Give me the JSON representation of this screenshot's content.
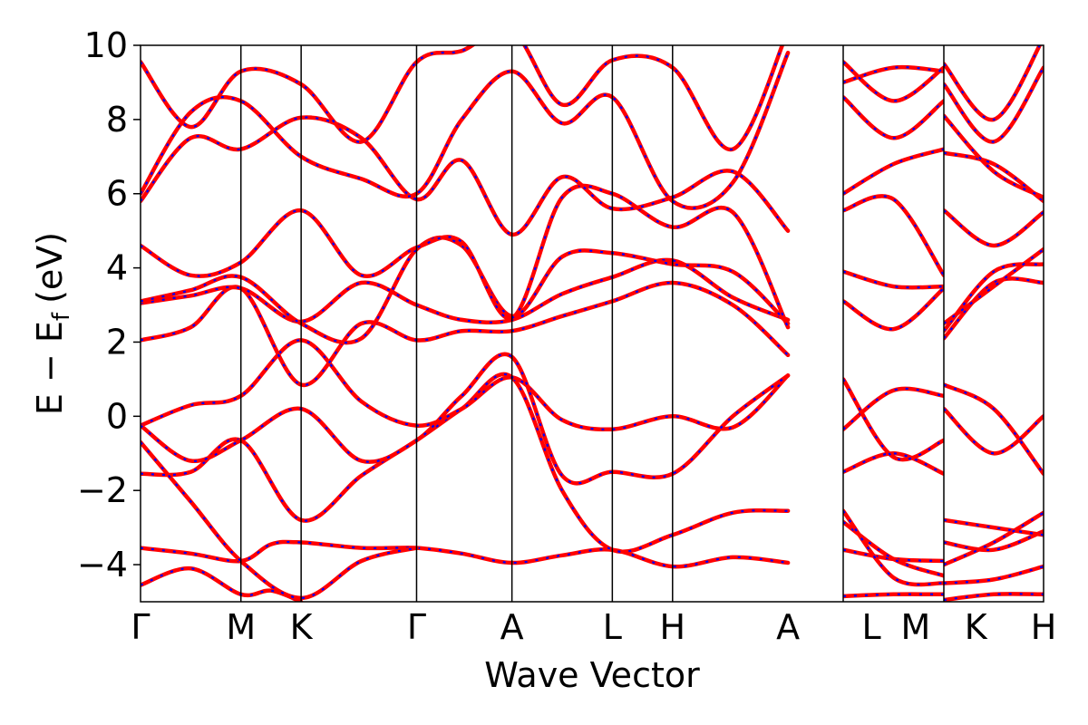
{
  "chart_data": {
    "type": "line",
    "title": "",
    "xlabel": "Wave Vector",
    "ylabel_main": "E − E",
    "ylabel_sub": "f",
    "ylabel_unit": "(eV)",
    "ylim": [
      -5,
      10
    ],
    "yticks": [
      -4,
      -2,
      0,
      2,
      4,
      6,
      8,
      10
    ],
    "ytick_labels": [
      "−4",
      "−2",
      "0",
      "2",
      "4",
      "6",
      "8",
      "10"
    ],
    "grid": false,
    "legend": "none",
    "colors": {
      "line": "#ff0000",
      "dash": "#0000ff",
      "axis": "#000000"
    },
    "segments": [
      {
        "name": "seg1",
        "x_range": [
          0,
          7
        ],
        "tick_labels": [
          {
            "x": 0,
            "label": "Γ"
          },
          {
            "x": 1,
            "label": "M"
          },
          {
            "x": 1.6,
            "label": "K"
          },
          {
            "x": 2.75,
            "label": "Γ"
          },
          {
            "x": 3.7,
            "label": "A"
          },
          {
            "x": 4.7,
            "label": "L"
          },
          {
            "x": 5.3,
            "label": "H"
          },
          {
            "x": 6.45,
            "label": "A"
          }
        ],
        "vlines": [
          1,
          1.6,
          2.75,
          3.7,
          4.7,
          5.3
        ],
        "bands": [
          [
            [
              0,
              -4.55
            ],
            [
              0.5,
              -4.1
            ],
            [
              1,
              -4.8
            ],
            [
              1.3,
              -4.7
            ],
            [
              1.6,
              -5.0
            ]
          ],
          [
            [
              0,
              -3.55
            ],
            [
              0.5,
              -3.7
            ],
            [
              1,
              -3.9
            ],
            [
              1.3,
              -3.45
            ],
            [
              1.6,
              -3.4
            ],
            [
              2.2,
              -3.55
            ],
            [
              2.75,
              -3.55
            ],
            [
              3.2,
              -3.7
            ],
            [
              3.7,
              -3.95
            ],
            [
              4.2,
              -3.75
            ],
            [
              4.7,
              -3.6
            ],
            [
              5.3,
              -4.05
            ],
            [
              5.9,
              -3.8
            ],
            [
              6.45,
              -3.95
            ]
          ],
          [
            [
              0,
              -1.55
            ],
            [
              0.5,
              -1.5
            ],
            [
              1,
              -0.65
            ],
            [
              1.6,
              -2.8
            ],
            [
              2.2,
              -1.6
            ],
            [
              2.75,
              -0.65
            ],
            [
              3.2,
              0.2
            ],
            [
              3.7,
              1.05
            ],
            [
              4.2,
              -2.0
            ],
            [
              4.7,
              -3.6
            ],
            [
              5.3,
              -3.2
            ],
            [
              5.9,
              -2.6
            ],
            [
              6.45,
              -2.55
            ]
          ],
          [
            [
              0,
              -0.7
            ],
            [
              0.5,
              -2.3
            ],
            [
              1,
              -3.9
            ],
            [
              1.6,
              -4.9
            ],
            [
              2.2,
              -3.9
            ],
            [
              2.75,
              -3.55
            ]
          ],
          [
            [
              0,
              -0.25
            ],
            [
              0.5,
              0.3
            ],
            [
              1,
              0.55
            ],
            [
              1.6,
              2.05
            ],
            [
              2.2,
              0.4
            ],
            [
              2.75,
              -0.25
            ],
            [
              3.2,
              0.2
            ],
            [
              3.7,
              1.05
            ],
            [
              4.2,
              -0.1
            ],
            [
              4.7,
              -0.35
            ],
            [
              5.3,
              0.0
            ],
            [
              5.9,
              -0.3
            ],
            [
              6.45,
              1.1
            ]
          ],
          [
            [
              0,
              -0.25
            ],
            [
              0.5,
              -1.2
            ],
            [
              1,
              -0.65
            ],
            [
              1.6,
              0.2
            ],
            [
              2.2,
              -1.2
            ],
            [
              2.75,
              -0.65
            ],
            [
              3.2,
              0.55
            ],
            [
              3.7,
              1.6
            ],
            [
              4.2,
              -1.6
            ],
            [
              4.7,
              -1.5
            ],
            [
              5.3,
              -1.55
            ],
            [
              5.9,
              0.0
            ],
            [
              6.45,
              1.1
            ]
          ],
          [
            [
              0,
              2.05
            ],
            [
              0.5,
              2.4
            ],
            [
              1,
              3.45
            ],
            [
              1.6,
              0.85
            ],
            [
              2.2,
              2.5
            ],
            [
              2.75,
              2.05
            ],
            [
              3.2,
              2.3
            ],
            [
              3.7,
              2.3
            ],
            [
              4.2,
              2.7
            ],
            [
              4.7,
              3.1
            ],
            [
              5.3,
              3.6
            ],
            [
              5.9,
              3.0
            ],
            [
              6.45,
              1.65
            ]
          ],
          [
            [
              0,
              3.05
            ],
            [
              0.5,
              3.25
            ],
            [
              1,
              3.45
            ],
            [
              1.6,
              2.55
            ],
            [
              2.2,
              3.6
            ],
            [
              2.75,
              3.0
            ],
            [
              3.2,
              2.6
            ],
            [
              3.7,
              2.6
            ],
            [
              4.2,
              3.3
            ],
            [
              4.7,
              3.75
            ],
            [
              5.3,
              4.2
            ],
            [
              5.9,
              3.2
            ],
            [
              6.45,
              2.6
            ]
          ],
          [
            [
              0,
              3.1
            ],
            [
              0.5,
              3.4
            ],
            [
              1,
              3.75
            ],
            [
              1.6,
              2.5
            ],
            [
              2.2,
              2.1
            ],
            [
              2.75,
              4.5
            ],
            [
              3.2,
              4.6
            ],
            [
              3.7,
              2.7
            ],
            [
              4.2,
              4.3
            ],
            [
              4.7,
              4.4
            ],
            [
              5.3,
              4.1
            ],
            [
              5.9,
              3.9
            ],
            [
              6.45,
              2.5
            ]
          ],
          [
            [
              0,
              4.6
            ],
            [
              0.5,
              3.8
            ],
            [
              1,
              4.15
            ],
            [
              1.6,
              5.55
            ],
            [
              2.2,
              3.8
            ],
            [
              2.75,
              4.55
            ],
            [
              3.2,
              4.7
            ],
            [
              3.7,
              2.65
            ],
            [
              4.2,
              5.9
            ],
            [
              4.7,
              6.0
            ],
            [
              5.3,
              5.1
            ],
            [
              5.9,
              5.5
            ],
            [
              6.45,
              2.4
            ]
          ],
          [
            [
              0,
              5.8
            ],
            [
              0.5,
              7.5
            ],
            [
              1,
              7.2
            ],
            [
              1.6,
              8.05
            ],
            [
              2.2,
              7.5
            ],
            [
              2.75,
              5.85
            ],
            [
              3.2,
              6.9
            ],
            [
              3.7,
              4.9
            ],
            [
              4.2,
              6.45
            ],
            [
              4.7,
              5.6
            ],
            [
              5.3,
              5.9
            ],
            [
              5.9,
              6.6
            ],
            [
              6.45,
              5.0
            ]
          ],
          [
            [
              0,
              6.0
            ],
            [
              0.5,
              8.2
            ],
            [
              1,
              8.5
            ],
            [
              1.6,
              7.0
            ],
            [
              2.2,
              6.4
            ],
            [
              2.75,
              6.0
            ],
            [
              3.2,
              8.0
            ],
            [
              3.7,
              9.3
            ],
            [
              4.2,
              7.9
            ],
            [
              4.7,
              8.6
            ],
            [
              5.3,
              5.8
            ],
            [
              5.9,
              6.3
            ],
            [
              6.45,
              9.8
            ]
          ],
          [
            [
              0,
              9.55
            ],
            [
              0.5,
              7.8
            ],
            [
              1,
              9.3
            ],
            [
              1.6,
              8.95
            ],
            [
              2.2,
              7.4
            ],
            [
              2.75,
              9.55
            ],
            [
              3.2,
              9.85
            ],
            [
              3.7,
              10.4
            ],
            [
              4.2,
              8.4
            ],
            [
              4.7,
              9.6
            ],
            [
              5.3,
              9.4
            ],
            [
              5.9,
              7.2
            ],
            [
              6.45,
              10.4
            ]
          ]
        ]
      },
      {
        "name": "seg2",
        "x_range": [
          0,
          1
        ],
        "tick_labels": [
          {
            "x": 0.28,
            "label": "L"
          },
          {
            "x": 0.72,
            "label": "M"
          }
        ],
        "vlines": [],
        "bands": [
          [
            [
              0,
              -4.85
            ],
            [
              0.5,
              -4.8
            ],
            [
              1,
              -4.8
            ]
          ],
          [
            [
              0,
              -3.6
            ],
            [
              0.5,
              -3.85
            ],
            [
              1,
              -3.9
            ]
          ],
          [
            [
              0,
              -2.85
            ],
            [
              0.5,
              -3.85
            ],
            [
              1,
              -4.3
            ]
          ],
          [
            [
              0,
              -2.55
            ],
            [
              0.5,
              -4.35
            ],
            [
              1,
              -4.5
            ]
          ],
          [
            [
              0,
              -1.5
            ],
            [
              0.5,
              -1.0
            ],
            [
              1,
              -1.55
            ]
          ],
          [
            [
              0,
              -0.35
            ],
            [
              0.5,
              0.7
            ],
            [
              1,
              0.55
            ]
          ],
          [
            [
              0,
              1.0
            ],
            [
              0.5,
              -1.1
            ],
            [
              1,
              -0.65
            ]
          ],
          [
            [
              0,
              3.1
            ],
            [
              0.5,
              2.35
            ],
            [
              1,
              3.45
            ]
          ],
          [
            [
              0,
              3.9
            ],
            [
              0.5,
              3.5
            ],
            [
              1,
              3.5
            ]
          ],
          [
            [
              0,
              5.55
            ],
            [
              0.5,
              5.85
            ],
            [
              1,
              3.8
            ]
          ],
          [
            [
              0,
              6.0
            ],
            [
              0.5,
              6.8
            ],
            [
              1,
              7.2
            ]
          ],
          [
            [
              0,
              8.6
            ],
            [
              0.5,
              7.5
            ],
            [
              1,
              8.5
            ]
          ],
          [
            [
              0,
              9.0
            ],
            [
              0.5,
              9.4
            ],
            [
              1,
              9.3
            ]
          ],
          [
            [
              0,
              9.55
            ],
            [
              0.5,
              8.5
            ],
            [
              1,
              9.4
            ]
          ]
        ]
      },
      {
        "name": "seg3",
        "x_range": [
          0,
          1
        ],
        "tick_labels": [
          {
            "x": 0.32,
            "label": "K"
          },
          {
            "x": 1.0,
            "label": "H"
          }
        ],
        "vlines": [],
        "bands": [
          [
            [
              0,
              -4.95
            ],
            [
              0.5,
              -4.8
            ],
            [
              1,
              -4.8
            ]
          ],
          [
            [
              0,
              -4.5
            ],
            [
              0.5,
              -4.4
            ],
            [
              1,
              -4.05
            ]
          ],
          [
            [
              0,
              -3.4
            ],
            [
              0.5,
              -3.6
            ],
            [
              1,
              -3.1
            ]
          ],
          [
            [
              0,
              -2.8
            ],
            [
              0.5,
              -3.0
            ],
            [
              1,
              -3.2
            ]
          ],
          [
            [
              0,
              -4.0
            ],
            [
              0.5,
              -3.4
            ],
            [
              1,
              -2.6
            ]
          ],
          [
            [
              0,
              0.85
            ],
            [
              0.5,
              0.2
            ],
            [
              1,
              -1.55
            ]
          ],
          [
            [
              0,
              0.2
            ],
            [
              0.5,
              -1.0
            ],
            [
              1,
              0.0
            ]
          ],
          [
            [
              0,
              2.1
            ],
            [
              0.5,
              3.6
            ],
            [
              1,
              3.6
            ]
          ],
          [
            [
              0,
              2.3
            ],
            [
              0.5,
              3.9
            ],
            [
              1,
              4.1
            ]
          ],
          [
            [
              0,
              2.5
            ],
            [
              0.5,
              3.5
            ],
            [
              1,
              4.5
            ]
          ],
          [
            [
              0,
              5.55
            ],
            [
              0.5,
              4.6
            ],
            [
              1,
              5.5
            ]
          ],
          [
            [
              0,
              7.1
            ],
            [
              0.5,
              6.8
            ],
            [
              1,
              5.8
            ]
          ],
          [
            [
              0,
              8.1
            ],
            [
              0.5,
              6.6
            ],
            [
              1,
              5.9
            ]
          ],
          [
            [
              0,
              8.95
            ],
            [
              0.5,
              7.4
            ],
            [
              1,
              9.4
            ]
          ],
          [
            [
              0,
              9.5
            ],
            [
              0.5,
              8.0
            ],
            [
              1,
              10.2
            ]
          ]
        ]
      }
    ]
  }
}
